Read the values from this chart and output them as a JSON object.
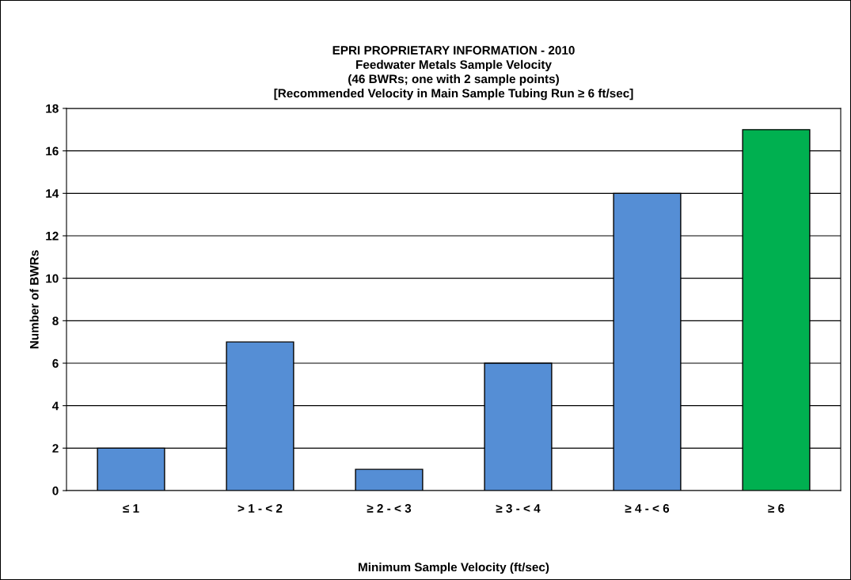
{
  "chart_data": {
    "type": "bar",
    "title": "EPRI PROPRIETARY INFORMATION - 2010\nFeedwater Metals Sample Velocity\n(46 BWRs; one with 2 sample points)\n[Recommended Velocity in Main Sample Tubing Run ≥ 6 ft/sec]",
    "xlabel": "Minimum Sample Velocity (ft/sec)",
    "ylabel": "Number of BWRs",
    "categories": [
      "≤ 1",
      "> 1 - < 2",
      "≥ 2 - < 3",
      "≥ 3 - < 4",
      "≥ 4 - < 6",
      "≥ 6"
    ],
    "values": [
      2,
      7,
      1,
      6,
      14,
      17
    ],
    "colors": [
      "#558ed5",
      "#558ed5",
      "#558ed5",
      "#558ed5",
      "#558ed5",
      "#00b050"
    ],
    "ylim": [
      0,
      18
    ],
    "yticks": [
      0,
      2,
      4,
      6,
      8,
      10,
      12,
      14,
      16,
      18
    ],
    "grid": "y",
    "legend": false
  }
}
